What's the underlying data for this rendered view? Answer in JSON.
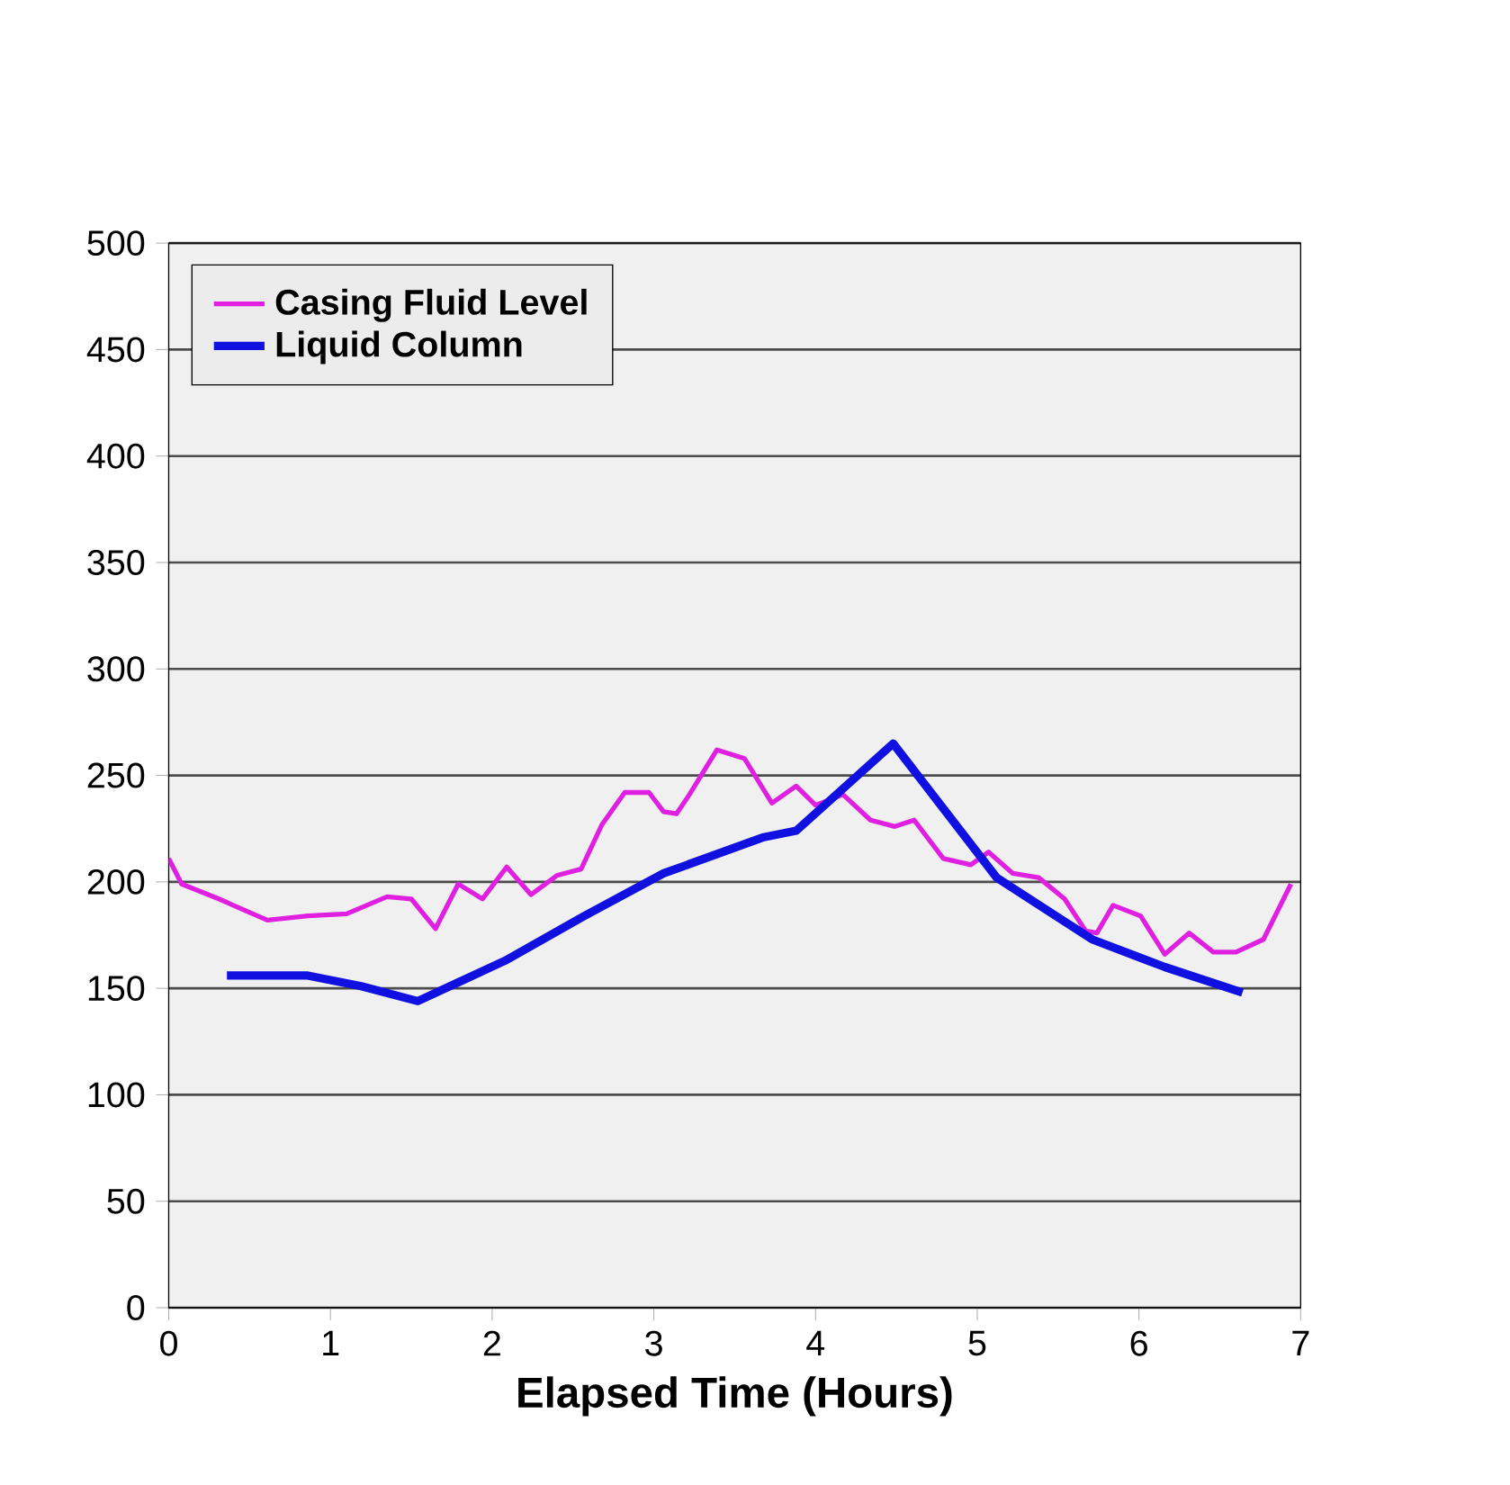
{
  "chart_data": {
    "type": "line",
    "xlabel": "Elapsed Time (Hours)",
    "xlim": [
      0,
      7
    ],
    "xticks": [
      0,
      1,
      2,
      3,
      4,
      5,
      6,
      7
    ],
    "ylim": [
      0,
      500
    ],
    "yticks": [
      0,
      50,
      100,
      150,
      200,
      250,
      300,
      350,
      400,
      450,
      500
    ],
    "grid": "y",
    "legend": "top left",
    "marker": "none",
    "line_style": "solid",
    "series": [
      {
        "name": "Casing Fluid Level",
        "color": "#e020e0",
        "x": [
          0,
          0.08,
          0.31,
          0.61,
          0.86,
          1.1,
          1.35,
          1.5,
          1.65,
          1.79,
          1.94,
          2.09,
          2.24,
          2.4,
          2.55,
          2.68,
          2.82,
          2.97,
          3.06,
          3.14,
          3.22,
          3.39,
          3.56,
          3.73,
          3.88,
          4.0,
          4.17,
          4.34,
          4.49,
          4.61,
          4.79,
          4.96,
          5.07,
          5.22,
          5.38,
          5.54,
          5.67,
          5.74,
          5.84,
          6.01,
          6.16,
          6.31,
          6.46,
          6.6,
          6.77,
          6.94
        ],
        "values": [
          211,
          199,
          192,
          182,
          184,
          185,
          193,
          192,
          178,
          199,
          192,
          207,
          194,
          203,
          206,
          227,
          242,
          242,
          233,
          232,
          241,
          262,
          258,
          237,
          245,
          236,
          241,
          229,
          226,
          229,
          211,
          208,
          214,
          204,
          202,
          192,
          177,
          176,
          189,
          184,
          166,
          176,
          167,
          167,
          173,
          199
        ]
      },
      {
        "name": "Liquid Column",
        "color": "#1010e0",
        "x": [
          0.36,
          0.86,
          1.19,
          1.54,
          2.08,
          2.57,
          3.06,
          3.68,
          3.88,
          4.48,
          5.12,
          5.71,
          6.16,
          6.64
        ],
        "values": [
          156,
          156,
          151,
          144,
          163,
          184,
          204,
          221,
          224,
          265,
          202,
          173,
          160,
          148
        ]
      }
    ]
  }
}
